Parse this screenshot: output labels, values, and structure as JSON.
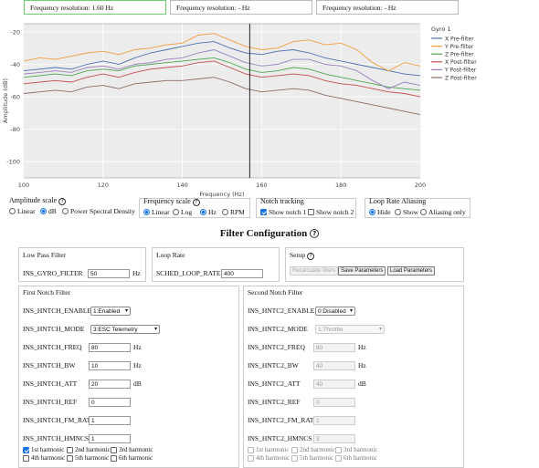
{
  "resolution_boxes": [
    "Frequency resolution: 1.60 Hz",
    "Frequency resolution: - Hz",
    "Frequency resolution: - Hz"
  ],
  "chart_data": {
    "type": "line",
    "xlabel": "Frequency (Hz)",
    "ylabel": "Amplitude (dB)",
    "xlim": [
      100,
      200
    ],
    "ylim": [
      -110,
      -15
    ],
    "x_ticks": [
      100,
      120,
      140,
      160,
      180,
      200
    ],
    "y_ticks": [
      -20,
      -40,
      -60,
      -80,
      -100
    ],
    "grid": true,
    "legend_title": "Gyro 1",
    "legend_position": "right",
    "cursor_x": 157,
    "x": [
      100,
      104,
      108,
      112,
      116,
      120,
      124,
      128,
      132,
      136,
      140,
      144,
      148,
      152,
      156,
      160,
      164,
      168,
      172,
      176,
      180,
      184,
      188,
      192,
      196,
      200
    ],
    "series": [
      {
        "name": "X Pre-filter",
        "color": "#4c72b0",
        "values": [
          -44,
          -43,
          -42,
          -43,
          -40,
          -38,
          -40,
          -36,
          -33,
          -31,
          -29,
          -27,
          -26,
          -30,
          -33,
          -34,
          -32,
          -31,
          -33,
          -36,
          -38,
          -40,
          -42,
          -44,
          -46,
          -47
        ]
      },
      {
        "name": "Y Pre-filter",
        "color": "#f0a040",
        "values": [
          -38,
          -36,
          -37,
          -35,
          -33,
          -32,
          -34,
          -31,
          -30,
          -28,
          -27,
          -22,
          -21,
          -25,
          -29,
          -31,
          -30,
          -26,
          -25,
          -28,
          -27,
          -31,
          -39,
          -44,
          -39,
          -41
        ]
      },
      {
        "name": "Z Pre-filter",
        "color": "#4fa64f",
        "values": [
          -48,
          -47,
          -46,
          -47,
          -44,
          -43,
          -44,
          -41,
          -40,
          -39,
          -38,
          -37,
          -36,
          -39,
          -43,
          -45,
          -44,
          -42,
          -43,
          -46,
          -48,
          -50,
          -52,
          -54,
          -55,
          -56
        ]
      },
      {
        "name": "X Post-filter",
        "color": "#c44e52",
        "values": [
          -52,
          -51,
          -50,
          -51,
          -48,
          -46,
          -48,
          -45,
          -43,
          -42,
          -41,
          -39,
          -38,
          -42,
          -46,
          -48,
          -47,
          -46,
          -47,
          -50,
          -52,
          -53,
          -55,
          -57,
          -58,
          -60
        ]
      },
      {
        "name": "Y Post-filter",
        "color": "#9b7fc0",
        "values": [
          -46,
          -45,
          -44,
          -45,
          -42,
          -41,
          -43,
          -40,
          -39,
          -37,
          -36,
          -33,
          -31,
          -35,
          -39,
          -41,
          -40,
          -37,
          -37,
          -40,
          -41,
          -44,
          -50,
          -55,
          -51,
          -53
        ]
      },
      {
        "name": "Z Post-filter",
        "color": "#8c6d62",
        "values": [
          -58,
          -57,
          -56,
          -57,
          -54,
          -53,
          -55,
          -52,
          -51,
          -50,
          -50,
          -49,
          -48,
          -51,
          -55,
          -57,
          -56,
          -55,
          -56,
          -59,
          -61,
          -63,
          -65,
          -67,
          -69,
          -71
        ]
      }
    ]
  },
  "controls": {
    "amplitude": {
      "title": "Amplitude scale",
      "options": [
        "Linear",
        "dB",
        "Power Spectral Density"
      ],
      "selected": "dB"
    },
    "frequency": {
      "title": "Frequency scale",
      "options": [
        "Linear",
        "Log"
      ],
      "selected": "Linear",
      "unit_options": [
        "Hz",
        "RPM"
      ],
      "unit_selected": "Hz"
    },
    "notch": {
      "title": "Notch tracking",
      "options": [
        "Show notch 1",
        "Show notch 2"
      ],
      "checked": [
        "Show notch 1"
      ]
    },
    "aliasing": {
      "title": "Loop Rate Aliasing",
      "options": [
        "Hide",
        "Show",
        "Aliasing only"
      ],
      "selected": "Hide"
    }
  },
  "filter_title": "Filter Configuration",
  "low_pass": {
    "title": "Low Pass Filter",
    "label": "INS_GYRO_FILTER",
    "value": "50",
    "unit": "Hz"
  },
  "loop_rate": {
    "title": "Loop Rate",
    "label": "SCHED_LOOP_RATE",
    "value": "400"
  },
  "setup": {
    "title": "Setup",
    "buttons": [
      "Recalculate filters",
      "Save Parameters",
      "Load Parameters"
    ]
  },
  "notch1": {
    "title": "First Notch Filter",
    "enable": {
      "label": "INS_HNTCH_ENABLE",
      "value": "1:Enabled"
    },
    "mode": {
      "label": "INS_HNTCH_MODE",
      "value": "3:ESC Telemetry"
    },
    "freq": {
      "label": "INS_HNTCH_FREQ",
      "value": "80",
      "unit": "Hz"
    },
    "bw": {
      "label": "INS_HNTCH_BW",
      "value": "10",
      "unit": "Hz"
    },
    "att": {
      "label": "INS_HNTCH_ATT",
      "value": "20",
      "unit": "dB"
    },
    "ref": {
      "label": "INS_HNTCH_REF",
      "value": "0"
    },
    "fm_rat": {
      "label": "INS_HNTCH_FM_RAT",
      "value": "1"
    },
    "hmncs": {
      "label": "INS_HNTCH_HMNCS",
      "value": "1"
    },
    "harmonics": [
      "1st harmonic",
      "2nd harmonic",
      "3rd harmonic",
      "4th harmonic",
      "5th harmonic",
      "6th harmonic"
    ],
    "harmonics_checked": [
      "1st harmonic"
    ]
  },
  "notch2": {
    "title": "Second Notch Filter",
    "enable": {
      "label": "INS_HNTC2_ENABLE",
      "value": "0:Disabled"
    },
    "mode": {
      "label": "INS_HNTC2_MODE",
      "value": "1:Throttle"
    },
    "freq": {
      "label": "INS_HNTC2_FREQ",
      "value": "80",
      "unit": "Hz"
    },
    "bw": {
      "label": "INS_HNTC2_BW",
      "value": "40",
      "unit": "Hz"
    },
    "att": {
      "label": "INS_HNTC2_ATT",
      "value": "40",
      "unit": "dB"
    },
    "ref": {
      "label": "INS_HNTC2_REF",
      "value": "0"
    },
    "fm_rat": {
      "label": "INS_HNTC2_FM_RAT",
      "value": "1"
    },
    "hmncs": {
      "label": "INS_HNTC2_HMNCS",
      "value": "3"
    },
    "harmonics": [
      "1st harmonic",
      "2nd harmonic",
      "3rd harmonic",
      "4th harmonic",
      "5th harmonic",
      "6th harmonic"
    ],
    "harmonics_checked": []
  }
}
